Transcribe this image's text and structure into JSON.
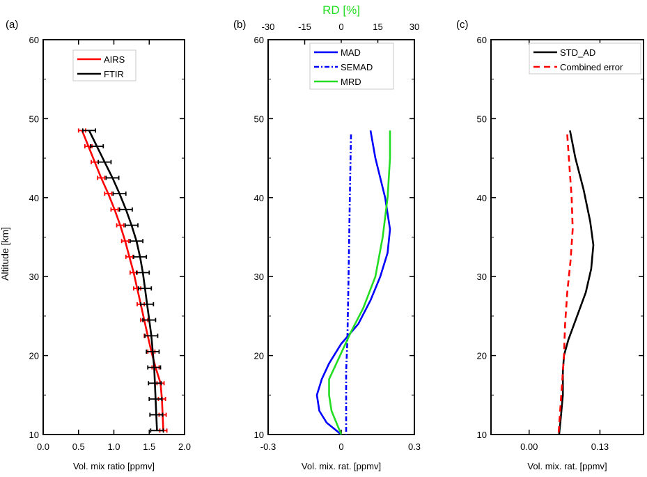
{
  "figure": {
    "shared_ylabel": "Altitude [km]"
  },
  "chart_data": [
    {
      "panel_label": "(a)",
      "type": "line",
      "xlabel": "Vol. mix ratio [ppmv]",
      "ylabel": "Altitude [km]",
      "xlim": [
        0.0,
        2.0
      ],
      "ylim": [
        10,
        60
      ],
      "x_ticks": [
        "0.0",
        "0.5",
        "1.0",
        "1.5",
        "2.0"
      ],
      "y_ticks": [
        "10",
        "20",
        "30",
        "40",
        "50",
        "60"
      ],
      "legend": {
        "placement": "top-center"
      },
      "series": [
        {
          "name": "AIRS",
          "color": "#ff0000",
          "error_bars": true,
          "points": [
            {
              "alt": 48.5,
              "x": 0.55,
              "err": 0.05
            },
            {
              "alt": 46.5,
              "x": 0.64,
              "err": 0.05
            },
            {
              "alt": 44.5,
              "x": 0.73,
              "err": 0.05
            },
            {
              "alt": 42.5,
              "x": 0.82,
              "err": 0.05
            },
            {
              "alt": 40.5,
              "x": 0.92,
              "err": 0.05
            },
            {
              "alt": 38.5,
              "x": 1.01,
              "err": 0.05
            },
            {
              "alt": 36.5,
              "x": 1.09,
              "err": 0.05
            },
            {
              "alt": 34.5,
              "x": 1.16,
              "err": 0.05
            },
            {
              "alt": 32.5,
              "x": 1.22,
              "err": 0.05
            },
            {
              "alt": 30.5,
              "x": 1.28,
              "err": 0.05
            },
            {
              "alt": 28.5,
              "x": 1.33,
              "err": 0.05
            },
            {
              "alt": 26.5,
              "x": 1.38,
              "err": 0.05
            },
            {
              "alt": 24.5,
              "x": 1.43,
              "err": 0.05
            },
            {
              "alt": 22.5,
              "x": 1.48,
              "err": 0.05
            },
            {
              "alt": 20.5,
              "x": 1.53,
              "err": 0.05
            },
            {
              "alt": 18.5,
              "x": 1.59,
              "err": 0.05
            },
            {
              "alt": 16.5,
              "x": 1.66,
              "err": 0.05
            },
            {
              "alt": 14.5,
              "x": 1.68,
              "err": 0.05
            },
            {
              "alt": 12.5,
              "x": 1.69,
              "err": 0.05
            },
            {
              "alt": 10.5,
              "x": 1.7,
              "err": 0.05
            }
          ]
        },
        {
          "name": "FTIR",
          "color": "#000000",
          "error_bars": true,
          "points": [
            {
              "alt": 48.5,
              "x": 0.65,
              "err": 0.09
            },
            {
              "alt": 46.5,
              "x": 0.76,
              "err": 0.09
            },
            {
              "alt": 44.5,
              "x": 0.87,
              "err": 0.09
            },
            {
              "alt": 42.5,
              "x": 0.98,
              "err": 0.09
            },
            {
              "alt": 40.5,
              "x": 1.08,
              "err": 0.09
            },
            {
              "alt": 38.5,
              "x": 1.17,
              "err": 0.09
            },
            {
              "alt": 36.5,
              "x": 1.25,
              "err": 0.09
            },
            {
              "alt": 34.5,
              "x": 1.32,
              "err": 0.09
            },
            {
              "alt": 32.5,
              "x": 1.37,
              "err": 0.09
            },
            {
              "alt": 30.5,
              "x": 1.41,
              "err": 0.09
            },
            {
              "alt": 28.5,
              "x": 1.44,
              "err": 0.09
            },
            {
              "alt": 26.5,
              "x": 1.47,
              "err": 0.09
            },
            {
              "alt": 24.5,
              "x": 1.5,
              "err": 0.09
            },
            {
              "alt": 22.5,
              "x": 1.53,
              "err": 0.09
            },
            {
              "alt": 20.5,
              "x": 1.55,
              "err": 0.09
            },
            {
              "alt": 18.5,
              "x": 1.57,
              "err": 0.09
            },
            {
              "alt": 16.5,
              "x": 1.58,
              "err": 0.09
            },
            {
              "alt": 14.5,
              "x": 1.59,
              "err": 0.09
            },
            {
              "alt": 12.5,
              "x": 1.6,
              "err": 0.09
            },
            {
              "alt": 10.5,
              "x": 1.61,
              "err": 0.09
            }
          ]
        }
      ]
    },
    {
      "panel_label": "(b)",
      "type": "line",
      "xlabel": "Vol. mix. rat. [ppmv]",
      "xlim": [
        -0.3,
        0.3
      ],
      "ylim": [
        10,
        60
      ],
      "x_ticks": [
        "-0.3",
        "0",
        "0.3"
      ],
      "y_ticks": [
        "10",
        "20",
        "30",
        "40",
        "50",
        "60"
      ],
      "secondary_x": {
        "label": "RD [%]",
        "color": "#22dd22",
        "lim": [
          -30,
          30
        ],
        "ticks": [
          "-30",
          "-15",
          "0",
          "15",
          "30"
        ]
      },
      "legend": {
        "placement": "top-center"
      },
      "series": [
        {
          "name": "MAD",
          "color": "#0000ff",
          "style": "solid",
          "axis": "bottom",
          "points": [
            {
              "alt": 48.5,
              "x": 0.12
            },
            {
              "alt": 45,
              "x": 0.14
            },
            {
              "alt": 40,
              "x": 0.18
            },
            {
              "alt": 36,
              "x": 0.2
            },
            {
              "alt": 33,
              "x": 0.19
            },
            {
              "alt": 30,
              "x": 0.16
            },
            {
              "alt": 27,
              "x": 0.12
            },
            {
              "alt": 24,
              "x": 0.07
            },
            {
              "alt": 21.5,
              "x": 0.0
            },
            {
              "alt": 19,
              "x": -0.05
            },
            {
              "alt": 17,
              "x": -0.08
            },
            {
              "alt": 15,
              "x": -0.1
            },
            {
              "alt": 13,
              "x": -0.09
            },
            {
              "alt": 11.5,
              "x": -0.06
            },
            {
              "alt": 10,
              "x": 0.0
            }
          ]
        },
        {
          "name": "SEMAD",
          "color": "#0000ff",
          "style": "dashdot",
          "axis": "bottom",
          "points": [
            {
              "alt": 48,
              "x": 0.04
            },
            {
              "alt": 40,
              "x": 0.035
            },
            {
              "alt": 30,
              "x": 0.03
            },
            {
              "alt": 22,
              "x": 0.025
            },
            {
              "alt": 18,
              "x": 0.02
            },
            {
              "alt": 14,
              "x": 0.02
            },
            {
              "alt": 10,
              "x": 0.02
            }
          ]
        },
        {
          "name": "MRD",
          "color": "#22dd22",
          "style": "solid",
          "axis": "top",
          "points": [
            {
              "alt": 48.5,
              "x": 20
            },
            {
              "alt": 45,
              "x": 20
            },
            {
              "alt": 40,
              "x": 19
            },
            {
              "alt": 35,
              "x": 17
            },
            {
              "alt": 30,
              "x": 14
            },
            {
              "alt": 26,
              "x": 9
            },
            {
              "alt": 23,
              "x": 4
            },
            {
              "alt": 21,
              "x": 1
            },
            {
              "alt": 19,
              "x": -2
            },
            {
              "alt": 17,
              "x": -5
            },
            {
              "alt": 15,
              "x": -5
            },
            {
              "alt": 13,
              "x": -4
            },
            {
              "alt": 11.5,
              "x": -2
            },
            {
              "alt": 10,
              "x": 0
            }
          ]
        }
      ]
    },
    {
      "panel_label": "(c)",
      "type": "line",
      "xlabel": "Vol. mix. rat. [ppmv]",
      "xlim": [
        -0.07,
        0.21
      ],
      "ylim": [
        10,
        60
      ],
      "x_ticks": [
        "0.00",
        "0.13"
      ],
      "y_ticks": [
        "10",
        "20",
        "30",
        "40",
        "50",
        "60"
      ],
      "legend": {
        "placement": "top-right"
      },
      "series": [
        {
          "name": "STD_AD",
          "color": "#000000",
          "style": "solid",
          "points": [
            {
              "alt": 48.5,
              "x": 0.075
            },
            {
              "alt": 45,
              "x": 0.085
            },
            {
              "alt": 41,
              "x": 0.1
            },
            {
              "alt": 37,
              "x": 0.112
            },
            {
              "alt": 34,
              "x": 0.118
            },
            {
              "alt": 31,
              "x": 0.114
            },
            {
              "alt": 28,
              "x": 0.104
            },
            {
              "alt": 25,
              "x": 0.088
            },
            {
              "alt": 22,
              "x": 0.072
            },
            {
              "alt": 20,
              "x": 0.064
            },
            {
              "alt": 18,
              "x": 0.062
            },
            {
              "alt": 15,
              "x": 0.062
            },
            {
              "alt": 12,
              "x": 0.058
            },
            {
              "alt": 10,
              "x": 0.055
            }
          ]
        },
        {
          "name": "Combined error",
          "color": "#ff0000",
          "style": "dashed",
          "points": [
            {
              "alt": 48,
              "x": 0.07
            },
            {
              "alt": 44,
              "x": 0.074
            },
            {
              "alt": 40,
              "x": 0.078
            },
            {
              "alt": 36,
              "x": 0.08
            },
            {
              "alt": 32,
              "x": 0.076
            },
            {
              "alt": 28,
              "x": 0.07
            },
            {
              "alt": 24,
              "x": 0.066
            },
            {
              "alt": 20,
              "x": 0.064
            },
            {
              "alt": 16,
              "x": 0.06
            },
            {
              "alt": 12,
              "x": 0.056
            },
            {
              "alt": 10,
              "x": 0.054
            }
          ]
        }
      ]
    }
  ]
}
